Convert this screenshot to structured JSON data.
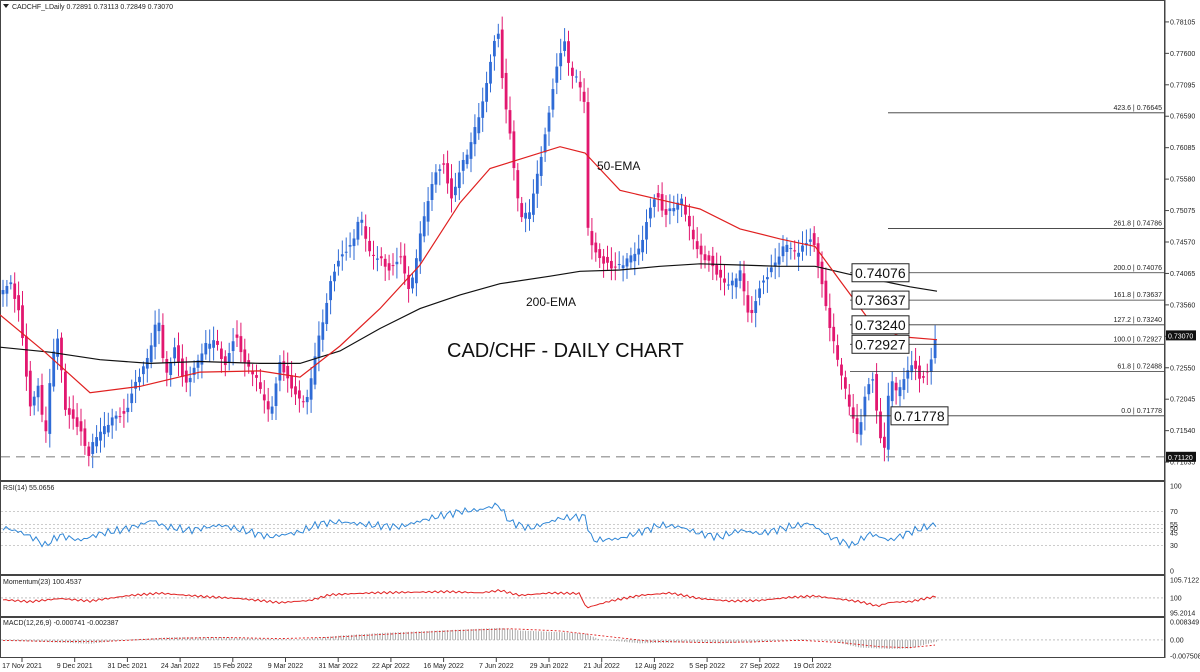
{
  "header": {
    "symbol_line": "CADCHF_LDaily  0.72891 0.73113 0.72849 0.73070"
  },
  "chart_title": "CAD/CHF - DAILY CHART",
  "labels": {
    "ema50": "50-EMA",
    "ema200": "200-EMA"
  },
  "colors": {
    "bull": "#2f6bd6",
    "bear": "#e2176f",
    "ema50": "#e02020",
    "ema200": "#111111",
    "rsi": "#2f86d6",
    "momentum": "#e02020",
    "macd_signal": "#e02020",
    "macd_hist": "#9a9a9a",
    "price_tag": "#111111"
  },
  "chart_data": [
    {
      "type": "candlestick",
      "pane": "price",
      "ylim": [
        0.7094,
        0.782
      ],
      "x_labels": [
        "17 Nov 2021",
        "9 Dec 2021",
        "31 Dec 2021",
        "24 Jan 2022",
        "15 Feb 2022",
        "9 Mar 2022",
        "31 Mar 2022",
        "22 Apr 2022",
        "16 May 2022",
        "7 Jun 2022",
        "29 Jun 2022",
        "21 Jul 2022",
        "12 Aug 2022",
        "5 Sep 2022",
        "27 Sep 2022",
        "19 Oct 2022"
      ],
      "y_ticks": [
        "0.78105",
        "0.77600",
        "0.77095",
        "0.76590",
        "0.76085",
        "0.75580",
        "0.75075",
        "0.74570",
        "0.74065",
        "0.73560",
        "0.73055",
        "0.72550",
        "0.72045",
        "0.71540",
        "0.71035"
      ],
      "close_path": [
        [
          0,
          0.738
        ],
        [
          10,
          0.7395
        ],
        [
          20,
          0.7335
        ],
        [
          30,
          0.7185
        ],
        [
          38,
          0.7228
        ],
        [
          45,
          0.7142
        ],
        [
          52,
          0.7275
        ],
        [
          58,
          0.731
        ],
        [
          65,
          0.719
        ],
        [
          72,
          0.717
        ],
        [
          80,
          0.7152
        ],
        [
          88,
          0.711
        ],
        [
          95,
          0.7145
        ],
        [
          105,
          0.7165
        ],
        [
          115,
          0.718
        ],
        [
          125,
          0.7175
        ],
        [
          135,
          0.7225
        ],
        [
          145,
          0.726
        ],
        [
          152,
          0.73
        ],
        [
          158,
          0.735
        ],
        [
          165,
          0.724
        ],
        [
          175,
          0.7285
        ],
        [
          185,
          0.722
        ],
        [
          195,
          0.7255
        ],
        [
          205,
          0.7295
        ],
        [
          215,
          0.7305
        ],
        [
          225,
          0.7255
        ],
        [
          235,
          0.7305
        ],
        [
          245,
          0.726
        ],
        [
          255,
          0.7245
        ],
        [
          262,
          0.722
        ],
        [
          270,
          0.718
        ],
        [
          280,
          0.7262
        ],
        [
          290,
          0.7222
        ],
        [
          300,
          0.72
        ],
        [
          308,
          0.721
        ],
        [
          316,
          0.729
        ],
        [
          324,
          0.734
        ],
        [
          332,
          0.7402
        ],
        [
          342,
          0.7432
        ],
        [
          352,
          0.745
        ],
        [
          360,
          0.7505
        ],
        [
          370,
          0.7442
        ],
        [
          380,
          0.7432
        ],
        [
          390,
          0.7405
        ],
        [
          400,
          0.7432
        ],
        [
          410,
          0.7375
        ],
        [
          420,
          0.7472
        ],
        [
          428,
          0.7528
        ],
        [
          436,
          0.757
        ],
        [
          444,
          0.7575
        ],
        [
          452,
          0.7518
        ],
        [
          460,
          0.7575
        ],
        [
          468,
          0.7605
        ],
        [
          476,
          0.765
        ],
        [
          484,
          0.769
        ],
        [
          492,
          0.776
        ],
        [
          498,
          0.7795
        ],
        [
          504,
          0.7682
        ],
        [
          510,
          0.7632
        ],
        [
          516,
          0.7542
        ],
        [
          522,
          0.75
        ],
        [
          530,
          0.7512
        ],
        [
          538,
          0.7572
        ],
        [
          546,
          0.7632
        ],
        [
          552,
          0.7692
        ],
        [
          558,
          0.7742
        ],
        [
          564,
          0.7782
        ],
        [
          570,
          0.7732
        ],
        [
          578,
          0.7722
        ],
        [
          584,
          0.7692
        ],
        [
          588,
          0.748
        ],
        [
          594,
          0.7442
        ],
        [
          602,
          0.7422
        ],
        [
          612,
          0.7412
        ],
        [
          622,
          0.7422
        ],
        [
          632,
          0.7442
        ],
        [
          640,
          0.7448
        ],
        [
          648,
          0.7498
        ],
        [
          656,
          0.7532
        ],
        [
          664,
          0.7495
        ],
        [
          674,
          0.7515
        ],
        [
          682,
          0.753
        ],
        [
          690,
          0.748
        ],
        [
          700,
          0.7435
        ],
        [
          710,
          0.742
        ],
        [
          720,
          0.7395
        ],
        [
          730,
          0.739
        ],
        [
          740,
          0.7415
        ],
        [
          750,
          0.733
        ],
        [
          758,
          0.7375
        ],
        [
          766,
          0.7395
        ],
        [
          776,
          0.7425
        ],
        [
          786,
          0.746
        ],
        [
          796,
          0.7442
        ],
        [
          804,
          0.7452
        ],
        [
          812,
          0.7462
        ],
        [
          820,
          0.7402
        ],
        [
          828,
          0.7332
        ],
        [
          836,
          0.7282
        ],
        [
          844,
          0.7232
        ],
        [
          852,
          0.7182
        ],
        [
          858,
          0.7142
        ],
        [
          866,
          0.7212
        ],
        [
          872,
          0.7242
        ],
        [
          878,
          0.7162
        ],
        [
          884,
          0.7116
        ],
        [
          890,
          0.725
        ],
        [
          896,
          0.722
        ],
        [
          904,
          0.724
        ],
        [
          912,
          0.7262
        ],
        [
          920,
          0.7232
        ],
        [
          928,
          0.7242
        ],
        [
          936,
          0.7307
        ]
      ],
      "ema50": [
        [
          0,
          0.734
        ],
        [
          45,
          0.728
        ],
        [
          90,
          0.7215
        ],
        [
          140,
          0.7225
        ],
        [
          200,
          0.7248
        ],
        [
          260,
          0.725
        ],
        [
          300,
          0.724
        ],
        [
          340,
          0.729
        ],
        [
          380,
          0.735
        ],
        [
          420,
          0.742
        ],
        [
          460,
          0.752
        ],
        [
          490,
          0.7575
        ],
        [
          520,
          0.759
        ],
        [
          560,
          0.761
        ],
        [
          585,
          0.76
        ],
        [
          620,
          0.754
        ],
        [
          660,
          0.7525
        ],
        [
          700,
          0.751
        ],
        [
          740,
          0.7478
        ],
        [
          780,
          0.7462
        ],
        [
          815,
          0.745
        ],
        [
          840,
          0.7395
        ],
        [
          870,
          0.733
        ],
        [
          900,
          0.7305
        ],
        [
          937,
          0.73
        ]
      ],
      "ema200": [
        [
          0,
          0.7288
        ],
        [
          50,
          0.728
        ],
        [
          100,
          0.7268
        ],
        [
          150,
          0.7262
        ],
        [
          200,
          0.7265
        ],
        [
          260,
          0.7262
        ],
        [
          300,
          0.7262
        ],
        [
          340,
          0.7282
        ],
        [
          380,
          0.7318
        ],
        [
          420,
          0.735
        ],
        [
          460,
          0.7372
        ],
        [
          500,
          0.739
        ],
        [
          550,
          0.7402
        ],
        [
          580,
          0.741
        ],
        [
          620,
          0.7412
        ],
        [
          660,
          0.7418
        ],
        [
          700,
          0.7422
        ],
        [
          740,
          0.742
        ],
        [
          780,
          0.7418
        ],
        [
          815,
          0.7418
        ],
        [
          850,
          0.7405
        ],
        [
          880,
          0.7395
        ],
        [
          910,
          0.7385
        ],
        [
          937,
          0.7378
        ]
      ],
      "dashed_support": 0.7112,
      "price_tags": [
        "0.73070",
        "0.71120"
      ],
      "fib_levels": [
        {
          "label": "423.6 | 0.76645",
          "value": 0.76645
        },
        {
          "label": "261.8 | 0.74786",
          "value": 0.74786
        },
        {
          "label": "200.0 | 0.74076",
          "value": 0.74076
        },
        {
          "label": "161.8 | 0.73637",
          "value": 0.73637
        },
        {
          "label": "127.2 | 0.73240",
          "value": 0.7324
        },
        {
          "label": "100.0 | 0.72927",
          "value": 0.72927
        },
        {
          "label": "61.8 | 0.72488",
          "value": 0.72488
        },
        {
          "label": "0.0 | 0.71778",
          "value": 0.71778
        }
      ],
      "boxed_levels": [
        "0.74076",
        "0.73637",
        "0.73240",
        "0.72927",
        "0.71778"
      ]
    },
    {
      "type": "line",
      "pane": "rsi",
      "label": "RSI(14) 55.0656",
      "ylim": [
        0,
        100
      ],
      "y_ticks": [
        "100",
        "70",
        "55",
        "50",
        "45",
        "30",
        "0"
      ],
      "values": [
        [
          0,
          52
        ],
        [
          20,
          46
        ],
        [
          35,
          38
        ],
        [
          45,
          30
        ],
        [
          60,
          42
        ],
        [
          80,
          36
        ],
        [
          100,
          44
        ],
        [
          120,
          48
        ],
        [
          140,
          54
        ],
        [
          152,
          60
        ],
        [
          165,
          52
        ],
        [
          190,
          48
        ],
        [
          220,
          54
        ],
        [
          250,
          46
        ],
        [
          270,
          40
        ],
        [
          300,
          46
        ],
        [
          320,
          56
        ],
        [
          340,
          58
        ],
        [
          370,
          54
        ],
        [
          400,
          52
        ],
        [
          430,
          62
        ],
        [
          460,
          70
        ],
        [
          480,
          72
        ],
        [
          498,
          78
        ],
        [
          510,
          58
        ],
        [
          530,
          50
        ],
        [
          560,
          62
        ],
        [
          585,
          64
        ],
        [
          592,
          36
        ],
        [
          620,
          38
        ],
        [
          640,
          46
        ],
        [
          660,
          54
        ],
        [
          680,
          52
        ],
        [
          700,
          44
        ],
        [
          720,
          40
        ],
        [
          740,
          48
        ],
        [
          760,
          44
        ],
        [
          790,
          52
        ],
        [
          810,
          56
        ],
        [
          830,
          40
        ],
        [
          852,
          30
        ],
        [
          870,
          44
        ],
        [
          890,
          36
        ],
        [
          910,
          46
        ],
        [
          936,
          55
        ]
      ]
    },
    {
      "type": "line",
      "pane": "momentum",
      "label": "Momentum(23) 100.4537",
      "ylim": [
        95.2014,
        105.7122
      ],
      "y_ticks": [
        "105.7122",
        "100",
        "95.2014"
      ],
      "values": [
        [
          0,
          99.5
        ],
        [
          30,
          98.8
        ],
        [
          60,
          99.8
        ],
        [
          90,
          99.0
        ],
        [
          130,
          100.8
        ],
        [
          160,
          101.5
        ],
        [
          200,
          100.5
        ],
        [
          240,
          99.8
        ],
        [
          280,
          98.5
        ],
        [
          310,
          99.2
        ],
        [
          330,
          101.0
        ],
        [
          370,
          101.6
        ],
        [
          410,
          101.8
        ],
        [
          450,
          102.0
        ],
        [
          480,
          101.6
        ],
        [
          500,
          102.4
        ],
        [
          520,
          100.8
        ],
        [
          550,
          101.6
        ],
        [
          580,
          101.4
        ],
        [
          586,
          96.8
        ],
        [
          610,
          99.0
        ],
        [
          640,
          100.8
        ],
        [
          670,
          101.6
        ],
        [
          700,
          99.8
        ],
        [
          730,
          99.0
        ],
        [
          760,
          99.2
        ],
        [
          790,
          100.2
        ],
        [
          815,
          100.6
        ],
        [
          840,
          99.6
        ],
        [
          860,
          98.8
        ],
        [
          878,
          97.4
        ],
        [
          890,
          98.6
        ],
        [
          910,
          98.8
        ],
        [
          936,
          100.5
        ]
      ]
    },
    {
      "type": "bar_line",
      "pane": "macd",
      "label": "MACD(12,26,9) -0.000741 -0.002387",
      "ylim": [
        -0.007508,
        0.008349
      ],
      "y_ticks": [
        "0.008349",
        "0.00",
        "-0.007508"
      ],
      "histogram": [
        [
          0,
          -0.0002
        ],
        [
          40,
          -0.0009
        ],
        [
          90,
          -0.0018
        ],
        [
          130,
          0.0002
        ],
        [
          170,
          0.0012
        ],
        [
          220,
          0.0013
        ],
        [
          260,
          0.0006
        ],
        [
          300,
          0.0002
        ],
        [
          340,
          0.002
        ],
        [
          380,
          0.0032
        ],
        [
          420,
          0.004
        ],
        [
          460,
          0.0048
        ],
        [
          500,
          0.0056
        ],
        [
          520,
          0.0044
        ],
        [
          560,
          0.0036
        ],
        [
          585,
          0.003
        ],
        [
          600,
          0.0002
        ],
        [
          640,
          -0.0016
        ],
        [
          680,
          -0.0012
        ],
        [
          720,
          -0.0016
        ],
        [
          760,
          -0.001
        ],
        [
          800,
          0.0004
        ],
        [
          830,
          -0.0004
        ],
        [
          860,
          -0.0036
        ],
        [
          890,
          -0.0042
        ],
        [
          910,
          -0.004
        ],
        [
          936,
          -0.0008
        ]
      ],
      "signal": [
        [
          0,
          -0.0002
        ],
        [
          60,
          -0.0008
        ],
        [
          110,
          -0.0006
        ],
        [
          160,
          0.0006
        ],
        [
          220,
          0.0012
        ],
        [
          280,
          0.0006
        ],
        [
          330,
          0.0012
        ],
        [
          400,
          0.003
        ],
        [
          460,
          0.0044
        ],
        [
          510,
          0.0052
        ],
        [
          560,
          0.0042
        ],
        [
          600,
          0.002
        ],
        [
          650,
          -0.0006
        ],
        [
          700,
          -0.0012
        ],
        [
          750,
          -0.001
        ],
        [
          800,
          -0.0002
        ],
        [
          840,
          -0.0012
        ],
        [
          880,
          -0.0032
        ],
        [
          910,
          -0.0036
        ],
        [
          936,
          -0.0024
        ]
      ]
    }
  ]
}
